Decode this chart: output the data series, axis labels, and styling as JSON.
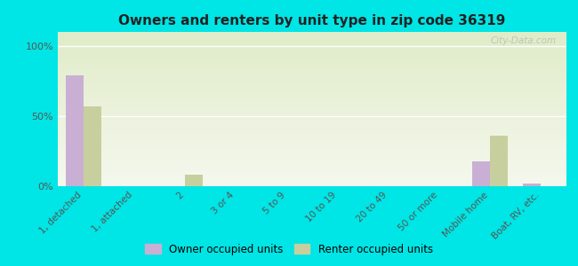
{
  "title": "Owners and renters by unit type in zip code 36319",
  "categories": [
    "1, detached",
    "1, attached",
    "2",
    "3 or 4",
    "5 to 9",
    "10 to 19",
    "20 to 49",
    "50 or more",
    "Mobile home",
    "Boat, RV, etc."
  ],
  "owner_values": [
    79,
    0,
    0,
    0,
    0,
    0,
    0,
    0,
    18,
    2
  ],
  "renter_values": [
    57,
    0,
    8,
    0,
    0,
    0,
    0,
    0,
    36,
    0
  ],
  "owner_color": "#c9afd4",
  "renter_color": "#c8cf9e",
  "background_color": "#00e5e5",
  "ylabel_ticks": [
    "0%",
    "50%",
    "100%"
  ],
  "yticks": [
    0,
    50,
    100
  ],
  "ylim": [
    0,
    110
  ],
  "legend_owner": "Owner occupied units",
  "legend_renter": "Renter occupied units",
  "watermark": "City-Data.com",
  "bar_width": 0.35,
  "grad_top": "#e0ecc8",
  "grad_bottom": "#f5f8ee"
}
